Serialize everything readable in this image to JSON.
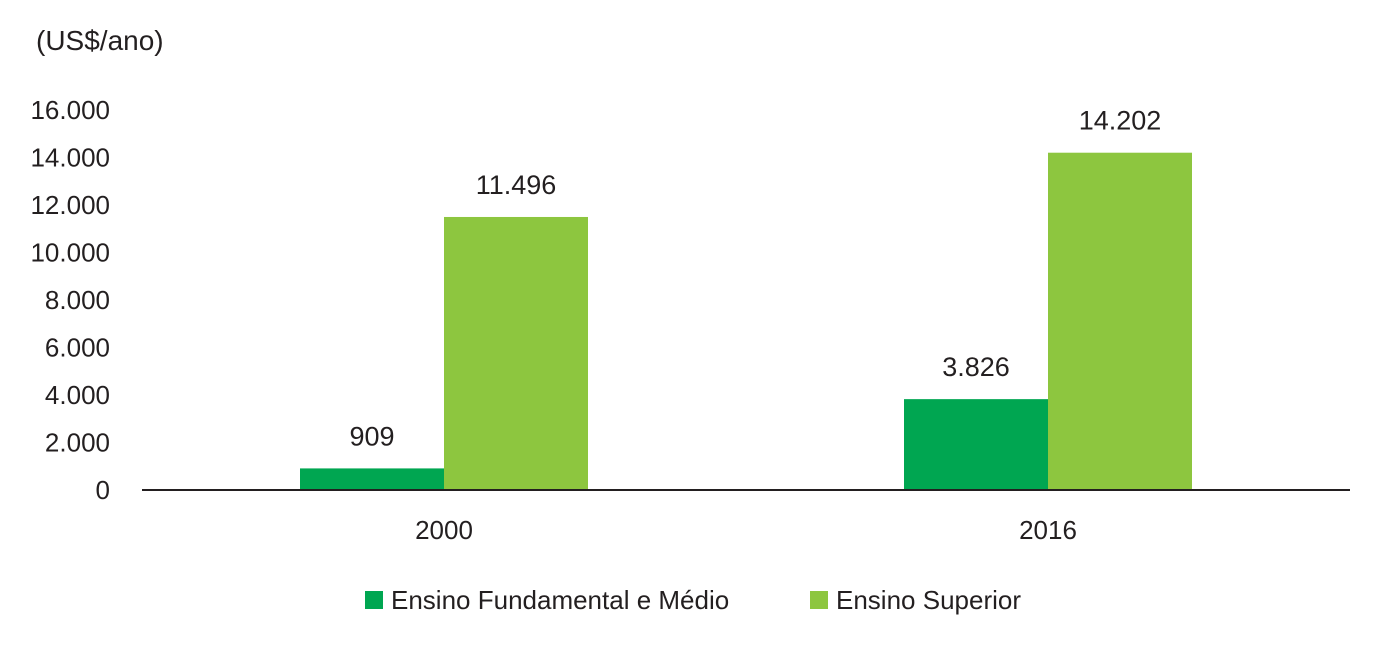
{
  "chart_data": {
    "type": "bar",
    "unit_label": "(US$/ano)",
    "title": "",
    "xlabel": "",
    "ylabel": "",
    "categories": [
      "2000",
      "2016"
    ],
    "series": [
      {
        "name": "Ensino Fundamental e Médio",
        "values": [
          909,
          3826
        ],
        "value_labels": [
          "909",
          "3.826"
        ],
        "color": "#00a651"
      },
      {
        "name": "Ensino Superior",
        "values": [
          11496,
          14202
        ],
        "value_labels": [
          "11.496",
          "14.202"
        ],
        "color": "#8dc63f"
      }
    ],
    "ylim": [
      0,
      16000
    ],
    "yticks": [
      0,
      2000,
      4000,
      6000,
      8000,
      10000,
      12000,
      14000,
      16000
    ],
    "ytick_labels": [
      "0",
      "2.000",
      "4.000",
      "6.000",
      "8.000",
      "10.000",
      "12.000",
      "14.000",
      "16.000"
    ],
    "grid": false,
    "legend_position": "bottom-center"
  }
}
